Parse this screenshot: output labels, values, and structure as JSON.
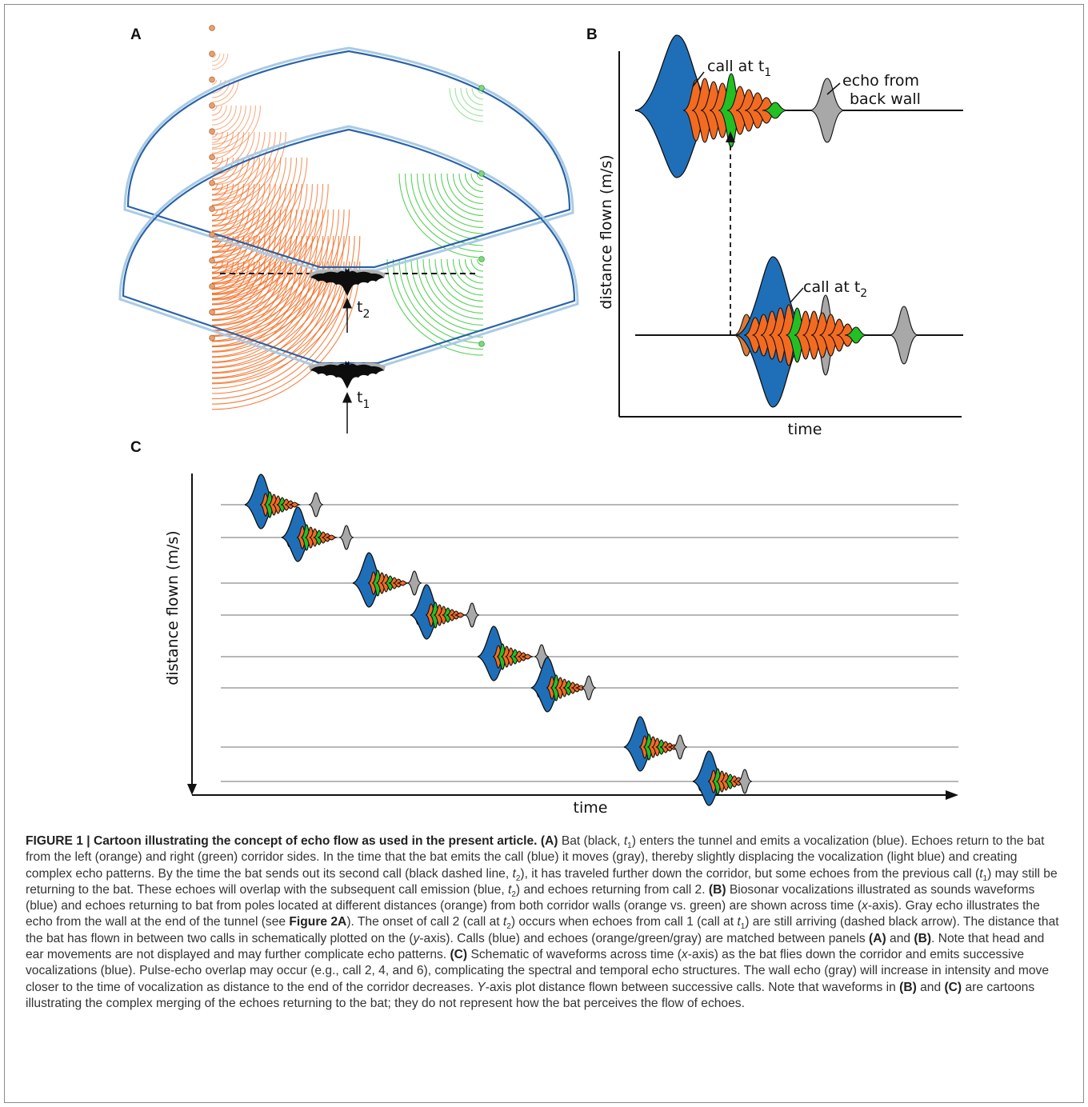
{
  "panel_a": {
    "letter": "A",
    "t1_label": "t",
    "t1_sub": "1",
    "t2_label": "t",
    "t2_sub": "2"
  },
  "panel_b": {
    "letter": "B",
    "call_t1": "call at t",
    "call_t1_sub": "1",
    "echo_line1": "echo from",
    "echo_line2": "back wall",
    "call_t2": "call at t",
    "call_t2_sub": "2",
    "ylabel": "distance flown (m/s)",
    "xlabel": "time"
  },
  "panel_c": {
    "letter": "C",
    "ylabel": "distance flown (m/s)",
    "xlabel": "time",
    "rows": [
      {
        "call_x": 326,
        "echo_x": 395
      },
      {
        "call_x": 372,
        "echo_x": 433
      },
      {
        "call_x": 461,
        "echo_x": 518
      },
      {
        "call_x": 533,
        "echo_x": 590
      },
      {
        "call_x": 617,
        "echo_x": 677
      },
      {
        "call_x": 684,
        "echo_x": 736
      },
      {
        "call_x": 800,
        "echo_x": 850
      },
      {
        "call_x": 886,
        "echo_x": 931
      }
    ]
  },
  "colors": {
    "call": "#1f6fb8",
    "echo_left": "#f26b21",
    "echo_right": "#22c022",
    "wall_echo": "#a8a8a8",
    "beam_dark": "#2a63a8",
    "beam_light": "#a9cbe6"
  },
  "caption": {
    "lead": "FIGURE 1 | Cartoon illustrating the concept of echo flow as used in the present article.",
    "part_a_ref": "(A)",
    "part_a_1": " Bat (black, ",
    "part_a_t1": "t",
    "part_a_t1_sub": "1",
    "part_a_2": ") enters the tunnel and emits a vocalization (blue). Echoes return to the bat from the left (orange) and right (green) corridor sides. In the time that the bat emits the call (blue) it moves (gray), thereby slightly displacing the vocalization (light blue) and creating complex echo patterns. By the time the bat sends out its second call (black dashed line, ",
    "part_a_t2": "t",
    "part_a_t2_sub": "2",
    "part_a_3": "), it has traveled further down the corridor, but some echoes from the previous call (",
    "part_a_t1b": "t",
    "part_a_t1b_sub": "1",
    "part_a_4": ") may still be returning to the bat. These echoes will overlap with the subsequent call emission (blue, ",
    "part_a_t2b": "t",
    "part_a_t2b_sub": "2",
    "part_a_5": ") and echoes returning from call 2. ",
    "part_b_ref": "(B)",
    "part_b_1": " Biosonar vocalizations illustrated as sounds waveforms (blue) and echoes returning to bat from poles located at different distances (orange) from both corridor walls (orange vs. green) are shown across time (",
    "part_b_x": "x",
    "part_b_2": "-axis). Gray echo illustrates the echo from the wall at the end of the tunnel (see ",
    "part_b_fig": "Figure 2A",
    "part_b_3": "). The onset of call 2 (call at ",
    "part_b_t2": "t",
    "part_b_t2_sub": "2",
    "part_b_4": ") occurs when echoes from call 1 (call at ",
    "part_b_t1": "t",
    "part_b_t1_sub": "1",
    "part_b_5": ") are still arriving (dashed black arrow). The distance that the bat has flown in between two calls in schematically plotted on the (",
    "part_b_y": "y",
    "part_b_6": "-axis). Calls (blue) and echoes (orange/green/gray) are matched between panels ",
    "part_b_refA": "(A)",
    "part_b_and": " and ",
    "part_b_refB": "(B)",
    "part_b_7": ". Note that head and ear movements are not displayed and may further complicate echo patterns. ",
    "part_c_ref": "(C)",
    "part_c_1": " Schematic of waveforms across time (",
    "part_c_x": "x",
    "part_c_2": "-axis) as the bat flies down the corridor and emits successive vocalizations (blue). Pulse-echo overlap may occur (e.g., call 2, 4, and 6), complicating the spectral and temporal echo structures. The wall echo (gray) will increase in intensity and move closer to the time of vocalization as distance to the end of the corridor decreases. ",
    "part_c_Y": "Y",
    "part_c_3": "-axis plot distance flown between successive calls. Note that waveforms in ",
    "part_c_refB": "(B)",
    "part_c_and": " and ",
    "part_c_refC": "(C)",
    "part_c_4": " are cartoons illustrating the complex merging of the echoes returning to the bat; they do not represent how the bat perceives the flow of echoes."
  }
}
